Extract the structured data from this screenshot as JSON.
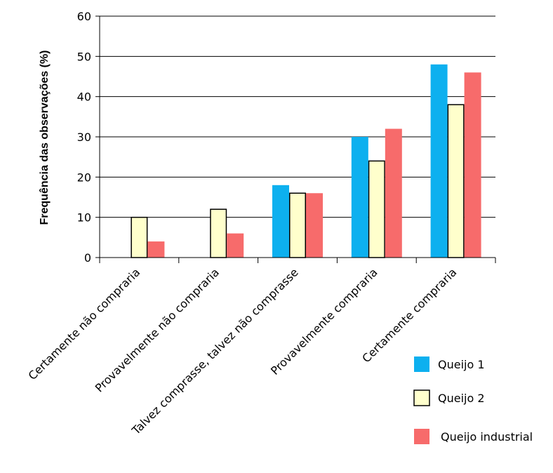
{
  "chart_data": {
    "type": "bar",
    "title": "",
    "xlabel": "",
    "ylabel": "Frequência das observações (%)",
    "ylim": [
      0,
      60
    ],
    "yticks": [
      0,
      10,
      20,
      30,
      40,
      50,
      60
    ],
    "grid": true,
    "legend_position": "bottom-right",
    "categories": [
      "Certamente não compraria",
      "Provavelmente não compraria",
      "Talvez comprasse, talvez não comprasse",
      "Provavelmente compraria",
      "Certamente compraria"
    ],
    "series": [
      {
        "name": "Queijo 1",
        "color": "#0db0ef",
        "values": [
          0,
          0,
          18,
          30,
          48
        ]
      },
      {
        "name": "Queijo 2",
        "color": "#ffffcc",
        "values": [
          10,
          12,
          16,
          24,
          38
        ]
      },
      {
        "name": "Queijo industrial",
        "color": "#f76b6b",
        "values": [
          4,
          6,
          16,
          32,
          46
        ]
      }
    ]
  }
}
